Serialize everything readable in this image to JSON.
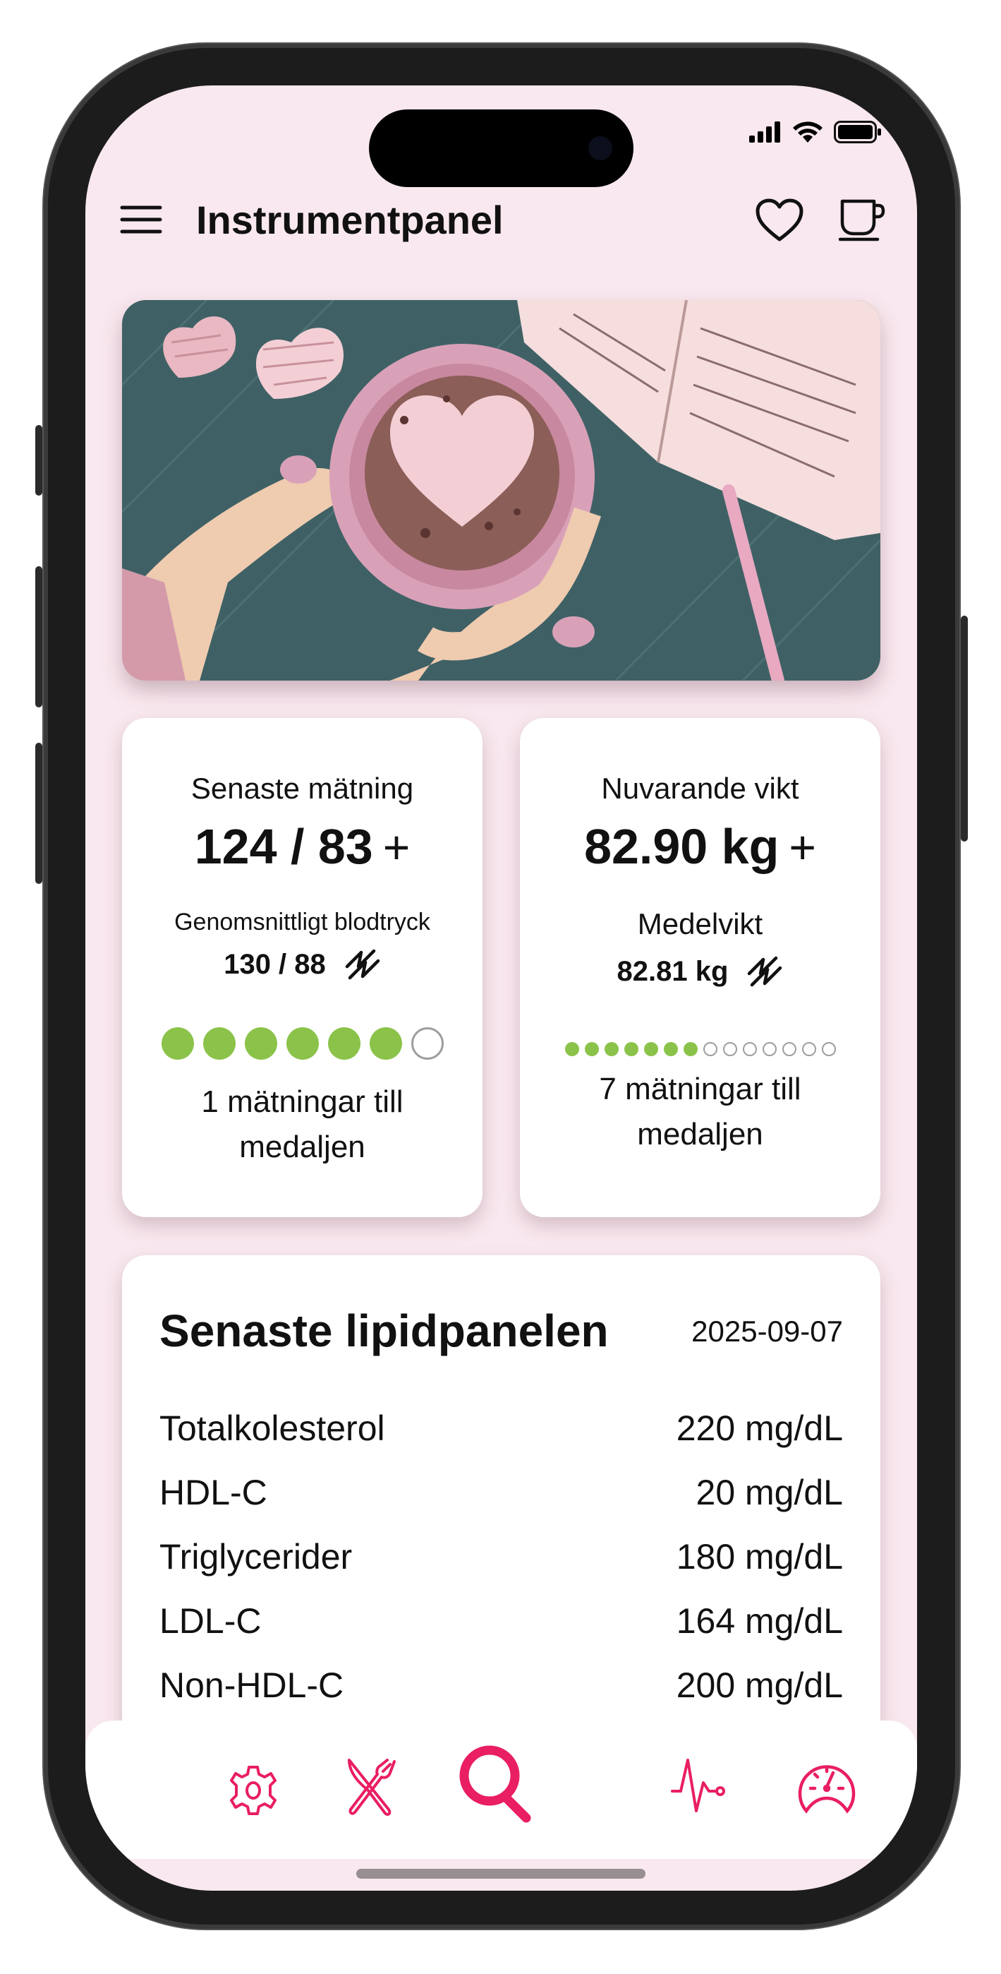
{
  "header": {
    "title": "Instrumentpanel",
    "menu_icon": "hamburger-menu-icon",
    "heart_icon": "heart-icon",
    "cup_icon": "coffee-cup-icon"
  },
  "status_bar": {
    "icons": [
      "signal-icon",
      "wifi-icon",
      "battery-icon"
    ]
  },
  "blood_pressure_card": {
    "label": "Senaste mätning",
    "value": "124 / 83",
    "add": "+",
    "avg_label": "Genomsnittligt blodtryck",
    "avg_value": "130 / 88",
    "trend_icon": "trend-icon",
    "progress_filled": 6,
    "progress_total": 7,
    "message": "1 mätningar till medaljen"
  },
  "weight_card": {
    "label": "Nuvarande vikt",
    "value": "82.90 kg",
    "add": "+",
    "avg_label": "Medelvikt",
    "avg_value": "82.81 kg",
    "trend_icon": "trend-icon",
    "progress_filled": 7,
    "progress_total": 14,
    "message": "7 mätningar till medaljen"
  },
  "lipid_panel": {
    "title": "Senaste lipidpanelen",
    "date": "2025-09-07",
    "rows": [
      {
        "name": "Totalkolesterol",
        "value": "220 mg/dL"
      },
      {
        "name": "HDL-C",
        "value": "20 mg/dL"
      },
      {
        "name": "Triglycerider",
        "value": "180 mg/dL"
      },
      {
        "name": "LDL-C",
        "value": "164 mg/dL"
      },
      {
        "name": "Non-HDL-C",
        "value": "200 mg/dL"
      }
    ]
  },
  "bottom_nav": {
    "items": [
      "settings-icon",
      "food-icon",
      "search-icon",
      "heart-rate-icon",
      "speedometer-icon"
    ]
  },
  "colors": {
    "background": "#f9e8ef",
    "accent": "#e91e63",
    "progress": "#8bc34a",
    "progress_empty": "#9e9e9e"
  }
}
